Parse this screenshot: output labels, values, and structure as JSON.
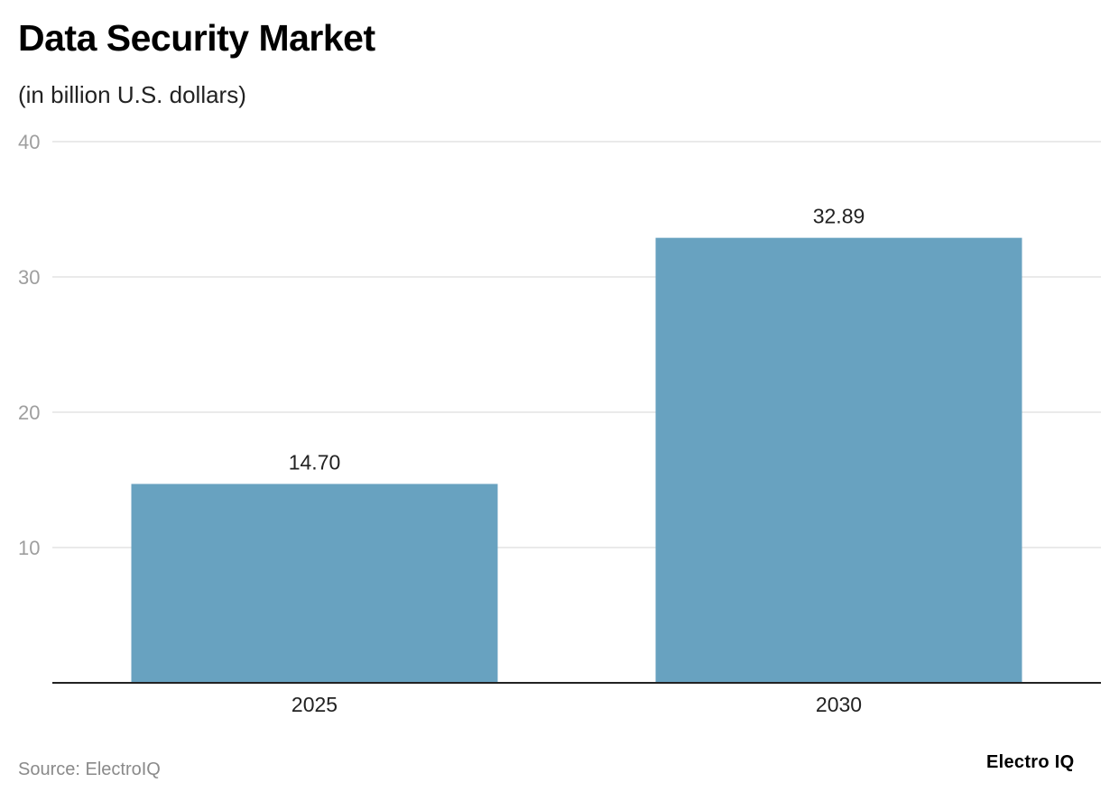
{
  "header": {
    "title": "Data Security Market",
    "subtitle": "(in billion U.S. dollars)"
  },
  "footer": {
    "source": "Source: ElectroIQ",
    "brand": "Electro IQ"
  },
  "colors": {
    "bar": "#68a2c0",
    "grid": "#e3e3e3",
    "axis": "#222222",
    "tick_label": "#9e9e9e",
    "value_label": "#222222"
  },
  "chart_data": {
    "type": "bar",
    "title": "Data Security Market",
    "subtitle": "(in billion U.S. dollars)",
    "categories": [
      "2025",
      "2030"
    ],
    "values": [
      14.7,
      32.89
    ],
    "value_labels": [
      "14.70",
      "32.89"
    ],
    "ylim": [
      0,
      40
    ],
    "yticks": [
      10,
      20,
      30,
      40
    ],
    "grid": true,
    "legend": "none"
  }
}
